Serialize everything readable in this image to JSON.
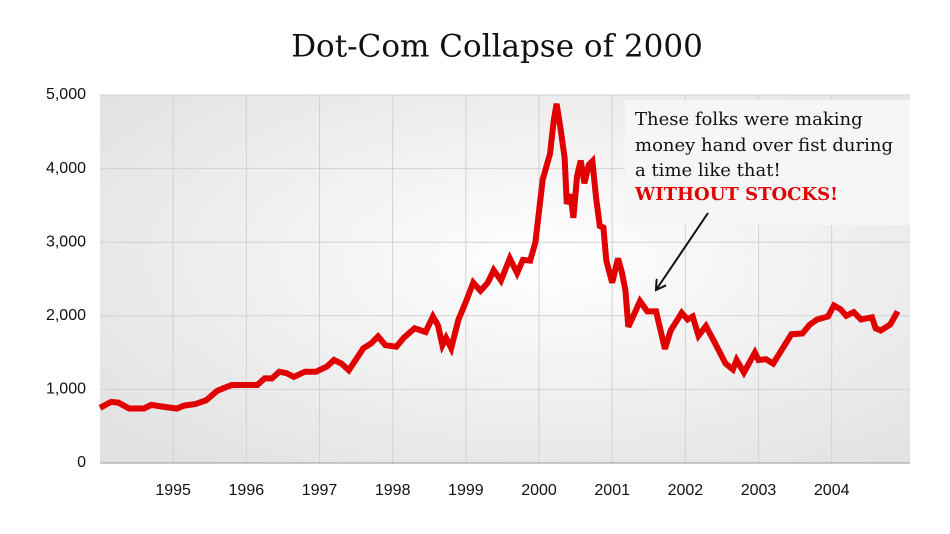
{
  "chart_data": {
    "type": "line",
    "title": "Dot-Com Collapse of 2000",
    "annotation": [
      "These folks were making",
      "money hand over fist during",
      "a time like that!"
    ],
    "annotation_emphasis": "WITHOUT STOCKS!",
    "color": "#e00000",
    "grid": true,
    "xlim": [
      1994,
      2005.07
    ],
    "xticks": [
      1995,
      1996,
      1997,
      1998,
      1999,
      2000,
      2001,
      2002,
      2003,
      2004
    ],
    "ylim": [
      0,
      5000
    ],
    "yticks": [
      0,
      {
        "value": 1000,
        "label": "1,000"
      },
      {
        "value": 2000,
        "label": "2,000"
      },
      {
        "value": 3000,
        "label": "3,000"
      },
      {
        "value": 4000,
        "label": "4,000"
      },
      {
        "value": 5000,
        "label": "5,000"
      }
    ],
    "x": [
      1994.0,
      1994.15,
      1994.25,
      1994.4,
      1994.6,
      1994.7,
      1994.9,
      1995.05,
      1995.15,
      1995.3,
      1995.45,
      1995.6,
      1995.7,
      1995.8,
      1996.05,
      1996.15,
      1996.25,
      1996.35,
      1996.45,
      1996.55,
      1996.65,
      1996.8,
      1996.95,
      1997.1,
      1997.2,
      1997.3,
      1997.4,
      1997.6,
      1997.7,
      1997.8,
      1997.9,
      1998.05,
      1998.15,
      1998.3,
      1998.45,
      1998.55,
      1998.62,
      1998.68,
      1998.73,
      1998.8,
      1998.9,
      1999.0,
      1999.1,
      1999.2,
      1999.3,
      1999.38,
      1999.48,
      1999.6,
      1999.7,
      1999.78,
      1999.88,
      1999.95,
      2000.05,
      2000.15,
      2000.2,
      2000.24,
      2000.3,
      2000.35,
      2000.38,
      2000.43,
      2000.47,
      2000.52,
      2000.57,
      2000.62,
      2000.68,
      2000.73,
      2000.78,
      2000.83,
      2000.88,
      2000.92,
      2001.0,
      2001.08,
      2001.13,
      2001.18,
      2001.22,
      2001.3,
      2001.38,
      2001.48,
      2001.6,
      2001.72,
      2001.8,
      2001.95,
      2002.03,
      2002.1,
      2002.18,
      2002.28,
      2002.4,
      2002.55,
      2002.65,
      2002.7,
      2002.8,
      2002.95,
      2003.0,
      2003.1,
      2003.2,
      2003.35,
      2003.45,
      2003.6,
      2003.7,
      2003.8,
      2003.95,
      2004.03,
      2004.12,
      2004.2,
      2004.3,
      2004.4,
      2004.55,
      2004.6,
      2004.67,
      2004.8,
      2004.9
    ],
    "values": [
      750,
      830,
      820,
      740,
      740,
      790,
      760,
      740,
      780,
      800,
      850,
      980,
      1020,
      1060,
      1060,
      1060,
      1150,
      1150,
      1240,
      1220,
      1170,
      1240,
      1240,
      1310,
      1400,
      1350,
      1260,
      1560,
      1620,
      1720,
      1600,
      1580,
      1700,
      1830,
      1780,
      1990,
      1870,
      1600,
      1700,
      1560,
      1950,
      2190,
      2450,
      2340,
      2450,
      2620,
      2480,
      2780,
      2580,
      2760,
      2750,
      3000,
      3850,
      4200,
      4650,
      4880,
      4500,
      4150,
      3520,
      3650,
      3330,
      3900,
      4110,
      3800,
      4050,
      4100,
      3600,
      3220,
      3200,
      2750,
      2450,
      2780,
      2600,
      2350,
      1850,
      2020,
      2200,
      2060,
      2060,
      1550,
      1800,
      2040,
      1950,
      1990,
      1730,
      1860,
      1640,
      1350,
      1270,
      1400,
      1230,
      1500,
      1400,
      1410,
      1350,
      1590,
      1750,
      1760,
      1880,
      1950,
      1990,
      2140,
      2090,
      2000,
      2050,
      1950,
      1980,
      1830,
      1800,
      1880,
      2060
    ]
  }
}
